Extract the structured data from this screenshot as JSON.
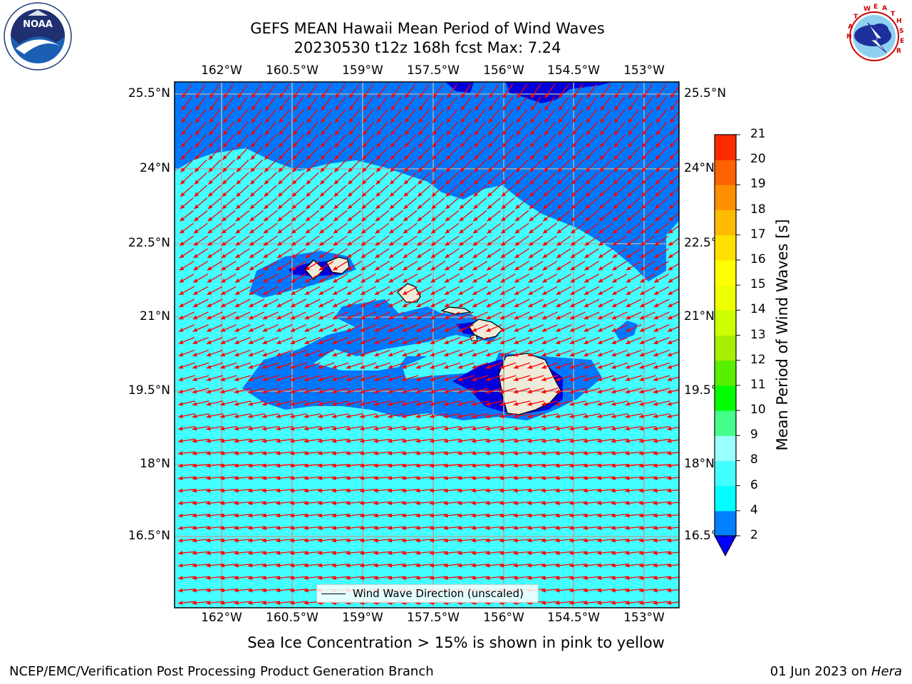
{
  "header": {
    "title_line1": "GEFS MEAN Hawaii Mean Period of Wind Waves",
    "title_line2": "20230530 t12z 168h fcst   Max: 7.24"
  },
  "logos": {
    "left": {
      "name": "noaa-logo",
      "text": "NOAA",
      "ring_text": "NATIONAL OCEANIC AND ATMOSPHERIC ADMINISTRATION · U.S. DEPARTMENT OF COMMERCE"
    },
    "right": {
      "name": "nws-logo",
      "ring_text": "NATIONAL WEATHER SERVICE"
    }
  },
  "map": {
    "lon_labels": [
      "162°W",
      "160.5°W",
      "159°W",
      "157.5°W",
      "156°W",
      "154.5°W",
      "153°W"
    ],
    "lat_labels": [
      "25.5°N",
      "24°N",
      "22.5°N",
      "21°N",
      "19.5°N",
      "18°N",
      "16.5°N"
    ],
    "legend_label": "Wind Wave Direction (unscaled)",
    "colors": {
      "deep_blue": "#0000dd",
      "blue": "#0077ff",
      "cyan": "#00ffff",
      "light_cyan": "#44ffff",
      "pale_cyan": "#99ffff",
      "land": "#efebd8",
      "arrow": "#ff0000",
      "grid": "#aaaaaa"
    }
  },
  "colorbar": {
    "label": "Mean Period of Wind Waves [s]",
    "tick_labels": [
      "21",
      "20",
      "19",
      "18",
      "17",
      "16",
      "15",
      "14",
      "13",
      "12",
      "11",
      "10",
      "9",
      "8",
      "6",
      "4",
      "2"
    ],
    "colors": [
      "#0000ff",
      "#007fff",
      "#00ffff",
      "#44ffff",
      "#99ffff",
      "#45ff8c",
      "#00ff00",
      "#5aef00",
      "#a6ef00",
      "#ccff00",
      "#eeff00",
      "#ffff00",
      "#ffe000",
      "#ffbb00",
      "#ff8f00",
      "#ff6200",
      "#ff2b00",
      "#ff0000"
    ]
  },
  "footer": {
    "subtitle": "Sea Ice Concentration > 15% is shown in pink to yellow",
    "left": "NCEP/EMC/Verification Post Processing Product Generation Branch",
    "date": "01 Jun 2023 on ",
    "machine": "Hera"
  }
}
